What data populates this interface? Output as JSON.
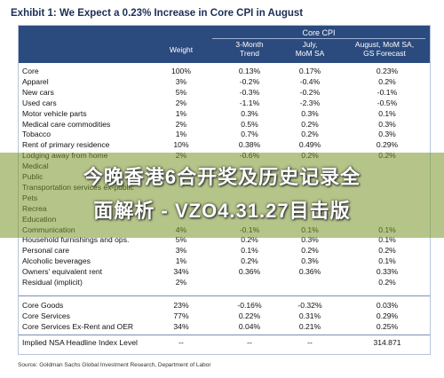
{
  "title": "Exhibit 1: We Expect a 0.23% Increase in Core CPI in August",
  "header": {
    "group": "Core CPI",
    "weight": "Weight",
    "trend": [
      "3-Month",
      "Trend"
    ],
    "july": [
      "July,",
      "MoM SA"
    ],
    "august": [
      "August, MoM SA,",
      "GS Forecast"
    ]
  },
  "rows_a": [
    [
      "Core",
      "100%",
      "0.13%",
      "0.17%",
      "0.23%"
    ],
    [
      "Apparel",
      "3%",
      "-0.2%",
      "-0.4%",
      "0.2%"
    ],
    [
      "New cars",
      "5%",
      "-0.3%",
      "-0.2%",
      "-0.1%"
    ],
    [
      "Used cars",
      "2%",
      "-1.1%",
      "-2.3%",
      "-0.5%"
    ],
    [
      "Motor vehicle parts",
      "1%",
      "0.3%",
      "0.3%",
      "0.1%"
    ],
    [
      "Medical care commodities",
      "2%",
      "0.5%",
      "0.2%",
      "0.3%"
    ],
    [
      "Tobacco",
      "1%",
      "0.7%",
      "0.2%",
      "0.3%"
    ],
    [
      "Rent of primary residence",
      "10%",
      "0.38%",
      "0.49%",
      "0.29%"
    ],
    [
      "Lodging away from home",
      "2%",
      "-0.6%",
      "0.2%",
      "0.2%"
    ],
    [
      "Medical",
      "",
      "",
      "",
      ""
    ],
    [
      "Public",
      "",
      "",
      "",
      ""
    ],
    [
      "Transportation services ex-public",
      "",
      "",
      "",
      ""
    ],
    [
      "Pets",
      "",
      "",
      "",
      ""
    ],
    [
      "Recrea",
      "",
      "",
      "",
      ""
    ],
    [
      "Education",
      "",
      "",
      "",
      ""
    ],
    [
      "Communication",
      "4%",
      "-0.1%",
      "0.1%",
      "0.1%"
    ],
    [
      "Household furnishings and ops.",
      "5%",
      "0.2%",
      "0.3%",
      "0.1%"
    ],
    [
      "Personal care",
      "3%",
      "0.1%",
      "0.2%",
      "0.2%"
    ],
    [
      "Alcoholic beverages",
      "1%",
      "0.2%",
      "0.3%",
      "0.1%"
    ],
    [
      "Owners' equivalent rent",
      "34%",
      "0.36%",
      "0.36%",
      "0.33%"
    ],
    [
      "Residual (implicit)",
      "2%",
      "",
      "",
      "0.2%"
    ]
  ],
  "rows_b": [
    [
      "Core Goods",
      "23%",
      "-0.16%",
      "-0.32%",
      "0.03%"
    ],
    [
      "Core Services",
      "77%",
      "0.22%",
      "0.31%",
      "0.29%"
    ],
    [
      "Core Services Ex-Rent and OER",
      "34%",
      "0.04%",
      "0.21%",
      "0.25%"
    ]
  ],
  "last_row": [
    "Implied NSA Headline Index Level",
    "--",
    "--",
    "--",
    "314.871"
  ],
  "source": "Source: Goldman Sachs Global Investment Research, Department of Labor",
  "overlay": {
    "line1": "今晚香港6合开奖及历史记录全",
    "line2": "面解析 - VZO4.31.27目击版"
  }
}
